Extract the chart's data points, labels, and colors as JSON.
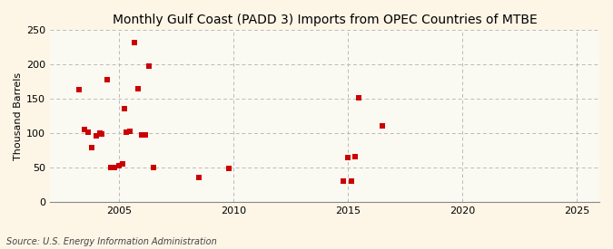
{
  "title": "Monthly Gulf Coast (PADD 3) Imports from OPEC Countries of MTBE",
  "ylabel": "Thousand Barrels",
  "source": "Source: U.S. Energy Information Administration",
  "background_color": "#FDF5E6",
  "plot_background_color": "#FAFAF2",
  "marker_color": "#CC0000",
  "marker": "s",
  "marker_size": 4,
  "xlim": [
    2002,
    2026
  ],
  "ylim": [
    0,
    250
  ],
  "xticks": [
    2005,
    2010,
    2015,
    2020,
    2025
  ],
  "yticks": [
    0,
    50,
    100,
    150,
    200,
    250
  ],
  "grid_color": "#BBBBBB",
  "data_points": [
    [
      2003.25,
      163
    ],
    [
      2003.5,
      105
    ],
    [
      2003.67,
      101
    ],
    [
      2003.83,
      79
    ],
    [
      2004.0,
      96
    ],
    [
      2004.17,
      100
    ],
    [
      2004.25,
      99
    ],
    [
      2004.5,
      178
    ],
    [
      2004.67,
      50
    ],
    [
      2004.83,
      50
    ],
    [
      2005.0,
      53
    ],
    [
      2005.17,
      55
    ],
    [
      2005.25,
      136
    ],
    [
      2005.33,
      101
    ],
    [
      2005.5,
      103
    ],
    [
      2005.67,
      232
    ],
    [
      2005.83,
      165
    ],
    [
      2006.0,
      98
    ],
    [
      2006.17,
      97
    ],
    [
      2006.33,
      198
    ],
    [
      2006.5,
      50
    ],
    [
      2008.5,
      36
    ],
    [
      2009.83,
      49
    ],
    [
      2014.83,
      30
    ],
    [
      2015.0,
      65
    ],
    [
      2015.17,
      30
    ],
    [
      2015.33,
      66
    ],
    [
      2015.5,
      151
    ],
    [
      2016.5,
      110
    ]
  ]
}
